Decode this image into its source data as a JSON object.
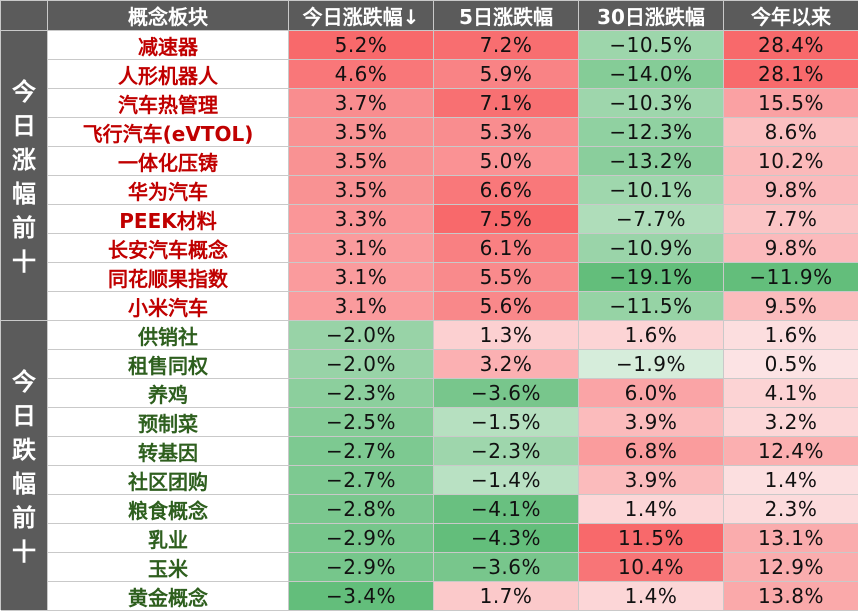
{
  "headers": {
    "concept": "概念板块",
    "today": "今日涨跌幅↓",
    "five_day": "5日涨跌幅",
    "thirty_day": "30日涨跌幅",
    "ytd": "今年以来"
  },
  "groups": [
    {
      "label": "今日涨幅前十",
      "chars": [
        "今",
        "日",
        "涨",
        "幅",
        "前",
        "十"
      ]
    },
    {
      "label": "今日跌幅前十",
      "chars": [
        "今",
        "日",
        "跌",
        "幅",
        "前",
        "十"
      ]
    }
  ],
  "colors": {
    "header_bg": "#5b5b5b",
    "gain_text": "#c00000",
    "loss_text": "#2e5f1e",
    "red_scale_max": "#f8696b",
    "green_scale_max": "#63be7b"
  },
  "rows": [
    {
      "name": "减速器",
      "today": "5.2%",
      "d5": "7.2%",
      "d30": "−10.5%",
      "ytd": "28.4%"
    },
    {
      "name": "人形机器人",
      "today": "4.6%",
      "d5": "5.9%",
      "d30": "−14.0%",
      "ytd": "28.1%"
    },
    {
      "name": "汽车热管理",
      "today": "3.7%",
      "d5": "7.1%",
      "d30": "−10.3%",
      "ytd": "15.5%"
    },
    {
      "name": "飞行汽车(eVTOL)",
      "today": "3.5%",
      "d5": "5.3%",
      "d30": "−12.3%",
      "ytd": "8.6%"
    },
    {
      "name": "一体化压铸",
      "today": "3.5%",
      "d5": "5.0%",
      "d30": "−13.2%",
      "ytd": "10.2%"
    },
    {
      "name": "华为汽车",
      "today": "3.5%",
      "d5": "6.6%",
      "d30": "−10.1%",
      "ytd": "9.8%"
    },
    {
      "name": "PEEK材料",
      "today": "3.3%",
      "d5": "7.5%",
      "d30": "−7.7%",
      "ytd": "7.7%"
    },
    {
      "name": "长安汽车概念",
      "today": "3.1%",
      "d5": "6.1%",
      "d30": "−10.9%",
      "ytd": "9.8%"
    },
    {
      "name": "同花顺果指数",
      "today": "3.1%",
      "d5": "5.5%",
      "d30": "−19.1%",
      "ytd": "−11.9%"
    },
    {
      "name": "小米汽车",
      "today": "3.1%",
      "d5": "5.6%",
      "d30": "−11.5%",
      "ytd": "9.5%"
    },
    {
      "name": "供销社",
      "today": "−2.0%",
      "d5": "1.3%",
      "d30": "1.6%",
      "ytd": "1.6%"
    },
    {
      "name": "租售同权",
      "today": "−2.0%",
      "d5": "3.2%",
      "d30": "−1.9%",
      "ytd": "0.5%"
    },
    {
      "name": "养鸡",
      "today": "−2.3%",
      "d5": "−3.6%",
      "d30": "6.0%",
      "ytd": "4.1%"
    },
    {
      "name": "预制菜",
      "today": "−2.5%",
      "d5": "−1.5%",
      "d30": "3.9%",
      "ytd": "3.2%"
    },
    {
      "name": "转基因",
      "today": "−2.7%",
      "d5": "−2.3%",
      "d30": "6.8%",
      "ytd": "12.4%"
    },
    {
      "name": "社区团购",
      "today": "−2.7%",
      "d5": "−1.4%",
      "d30": "3.9%",
      "ytd": "1.4%"
    },
    {
      "name": "粮食概念",
      "today": "−2.8%",
      "d5": "−4.1%",
      "d30": "1.4%",
      "ytd": "2.3%"
    },
    {
      "name": "乳业",
      "today": "−2.9%",
      "d5": "−4.3%",
      "d30": "11.5%",
      "ytd": "13.1%"
    },
    {
      "name": "玉米",
      "today": "−2.9%",
      "d5": "−3.6%",
      "d30": "10.4%",
      "ytd": "12.9%"
    },
    {
      "name": "黄金概念",
      "today": "−3.4%",
      "d5": "1.7%",
      "d30": "1.4%",
      "ytd": "13.8%"
    }
  ]
}
